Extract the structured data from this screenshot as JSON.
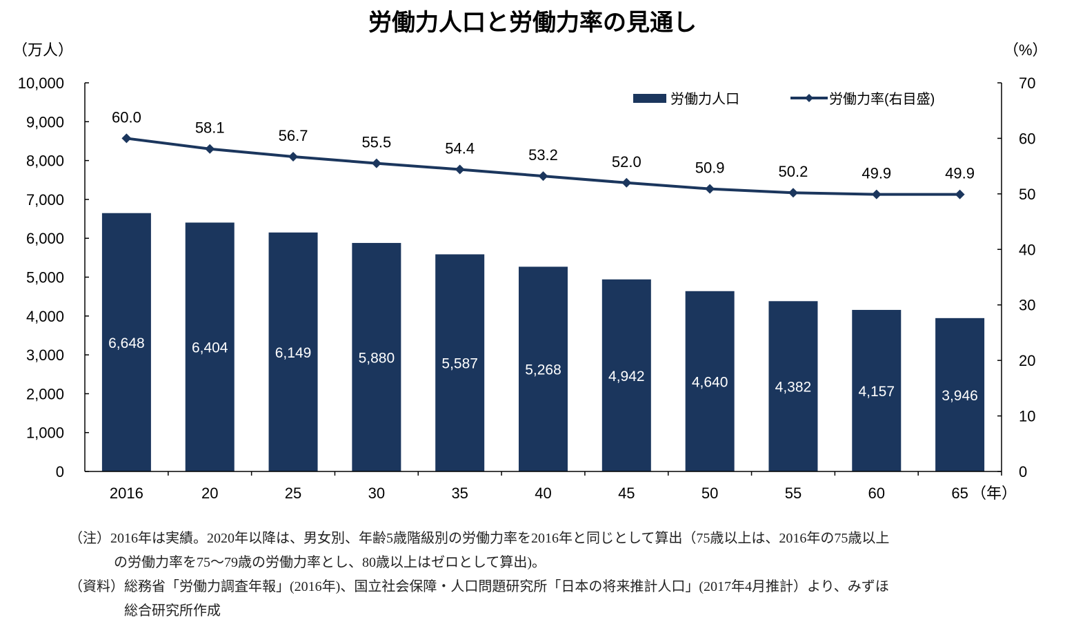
{
  "chart_data": {
    "type": "bar+line",
    "title": "労働力人口と労働力率の見通し",
    "categories": [
      "2016",
      "20",
      "25",
      "30",
      "35",
      "40",
      "45",
      "50",
      "55",
      "60",
      "65"
    ],
    "x_unit": "（年）",
    "y_left": {
      "unit": "（万人）",
      "lim": [
        0,
        10000
      ],
      "ticks": [
        "0",
        "1,000",
        "2,000",
        "3,000",
        "4,000",
        "5,000",
        "6,000",
        "7,000",
        "8,000",
        "9,000",
        "10,000"
      ]
    },
    "y_right": {
      "unit": "（%）",
      "lim": [
        0,
        70
      ],
      "ticks": [
        "0",
        "10",
        "20",
        "30",
        "40",
        "50",
        "60",
        "70"
      ]
    },
    "series": [
      {
        "name": "労働力人口",
        "type": "bar",
        "axis": "left",
        "color": "#1b365d",
        "values": [
          6648,
          6404,
          6149,
          5880,
          5587,
          5268,
          4942,
          4640,
          4382,
          4157,
          3946
        ],
        "labels": [
          "6,648",
          "6,404",
          "6,149",
          "5,880",
          "5,587",
          "5,268",
          "4,942",
          "4,640",
          "4,382",
          "4,157",
          "3,946"
        ]
      },
      {
        "name": "労働力率(右目盛)",
        "type": "line",
        "axis": "right",
        "color": "#1b365d",
        "values": [
          60.0,
          58.1,
          56.7,
          55.5,
          54.4,
          53.2,
          52.0,
          50.9,
          50.2,
          49.9,
          49.9
        ],
        "labels": [
          "60.0",
          "58.1",
          "56.7",
          "55.5",
          "54.4",
          "53.2",
          "52.0",
          "50.9",
          "50.2",
          "49.9",
          "49.9"
        ]
      }
    ],
    "legend": "top-right",
    "grid": false
  },
  "notes": {
    "note_line1": "（注）2016年は実績。2020年以降は、男女別、年齢5歳階級別の労働力率を2016年と同じとして算出（75歳以上は、2016年の75歳以上",
    "note_line2": "の労働力率を75～79歳の労働力率とし、80歳以上はゼロとして算出)。",
    "source_line1": "（資料）総務省「労働力調査年報」(2016年)、国立社会保障・人口問題研究所「日本の将来推計人口」(2017年4月推計）より、みずほ",
    "source_line2": "総合研究所作成"
  }
}
